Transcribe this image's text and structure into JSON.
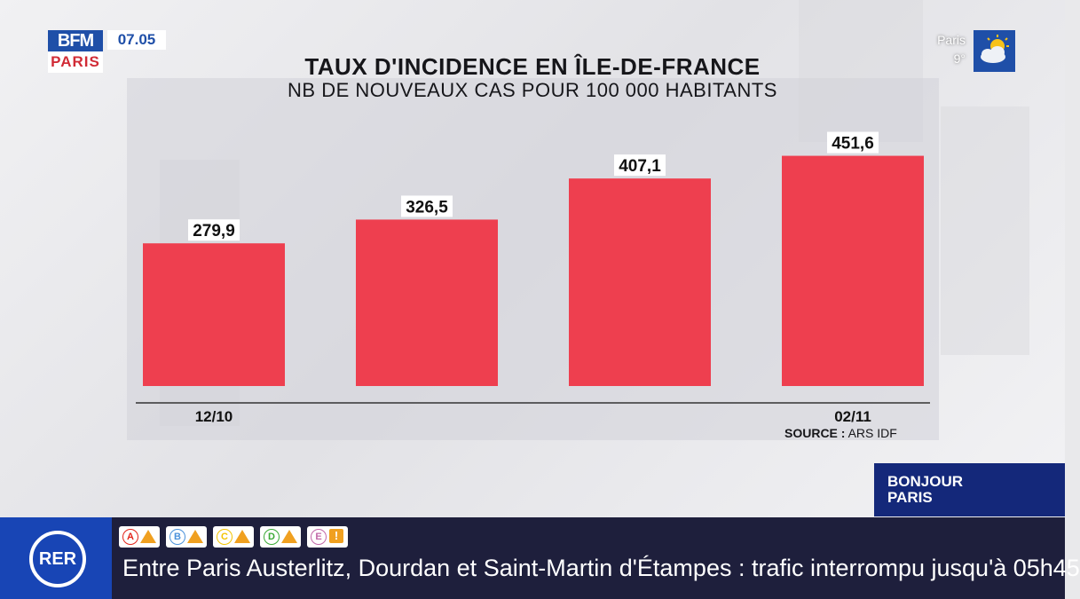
{
  "header": {
    "logo_top": "BFM",
    "logo_bottom": "PARIS",
    "time": "07.05",
    "weather": {
      "city": "Paris",
      "temp": "9°",
      "icon": "sun-cloud-icon"
    }
  },
  "chart_data": {
    "type": "bar",
    "title": "TAUX D'INCIDENCE EN ÎLE-DE-FRANCE",
    "subtitle": "NB DE NOUVEAUX CAS POUR 100 000 HABITANTS",
    "categories": [
      "12/10",
      "",
      "",
      "02/11"
    ],
    "values": [
      279.9,
      326.5,
      407.1,
      451.6
    ],
    "value_labels": [
      "279,9",
      "326,5",
      "407,1",
      "451,6"
    ],
    "ylim": [
      0,
      470
    ],
    "grid": false,
    "legend": "none",
    "bar_color": "#ee3f4f",
    "source_label": "SOURCE :",
    "source": "ARS IDF"
  },
  "show_tag": {
    "line1": "BONJOUR",
    "line2": "PARIS"
  },
  "ticker": {
    "badge": "RER",
    "lines": [
      {
        "letter": "A",
        "color": "#e2231a",
        "status": "warning"
      },
      {
        "letter": "B",
        "color": "#4b92db",
        "status": "warning"
      },
      {
        "letter": "C",
        "color": "#f3c400",
        "status": "warning"
      },
      {
        "letter": "D",
        "color": "#3aa935",
        "status": "warning"
      },
      {
        "letter": "E",
        "color": "#c167a8",
        "status": "info"
      }
    ],
    "message": "Entre Paris Austerlitz, Dourdan et Saint-Martin d'Étampes : trafic interrompu jusqu'à 05h45"
  }
}
